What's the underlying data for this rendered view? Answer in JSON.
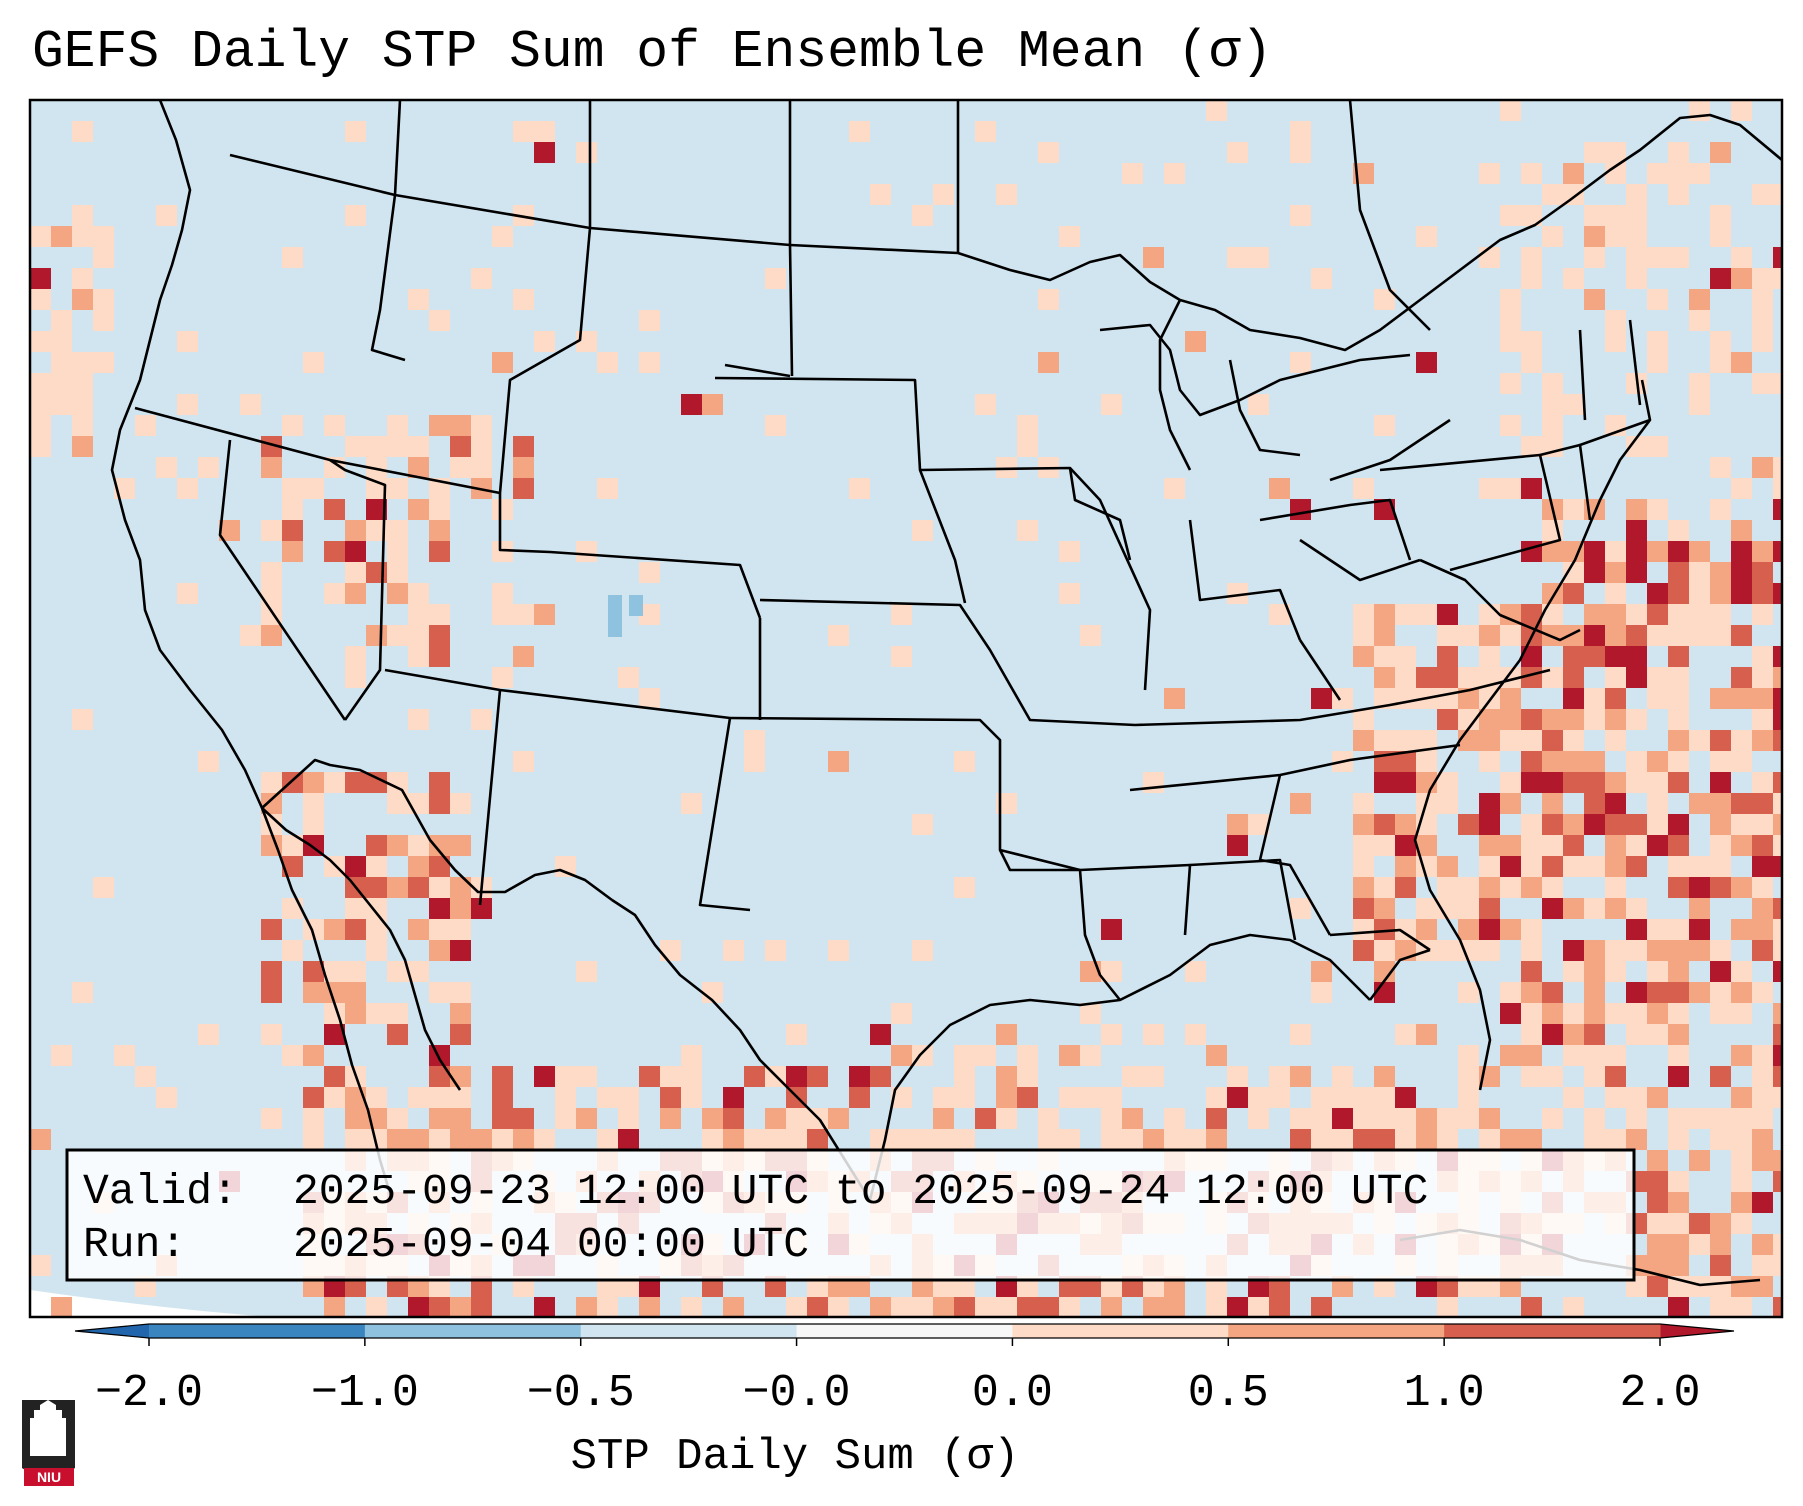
{
  "title": "GEFS Daily STP Sum of Ensemble Mean (σ)",
  "info_box": {
    "valid_label": "Valid:",
    "valid_value": "2025-09-23 12:00 UTC to 2025-09-24 12:00 UTC",
    "run_label": "Run:",
    "run_value": "2025-09-04 00:00 UTC"
  },
  "colorbar": {
    "label": "STP Daily Sum (σ)",
    "ticks": [
      "−2.0",
      "−1.0",
      "−0.5",
      "−0.0",
      "0.0",
      "0.5",
      "1.0",
      "2.0"
    ],
    "bins": [
      {
        "range": "-2.0 to -1.0",
        "color": "#3a84bf"
      },
      {
        "range": "-1.0 to -0.5",
        "color": "#8fc2de"
      },
      {
        "range": "-0.5 to -0.0",
        "color": "#d1e5f0"
      },
      {
        "range": "-0.0 to 0.0",
        "color": "#f7f7f7"
      },
      {
        "range": "0.0 to 0.5",
        "color": "#fddbc7"
      },
      {
        "range": "0.5 to 1.0",
        "color": "#f4a582"
      },
      {
        "range": "1.0 to 2.0",
        "color": "#d6604d"
      }
    ],
    "under_color": "#2166ac",
    "over_color": "#b2182b"
  },
  "map": {
    "background_color": "#d1e5f0",
    "region": "Contiguous United States"
  },
  "logo": {
    "text": "NIU",
    "color": "#c8102e"
  }
}
